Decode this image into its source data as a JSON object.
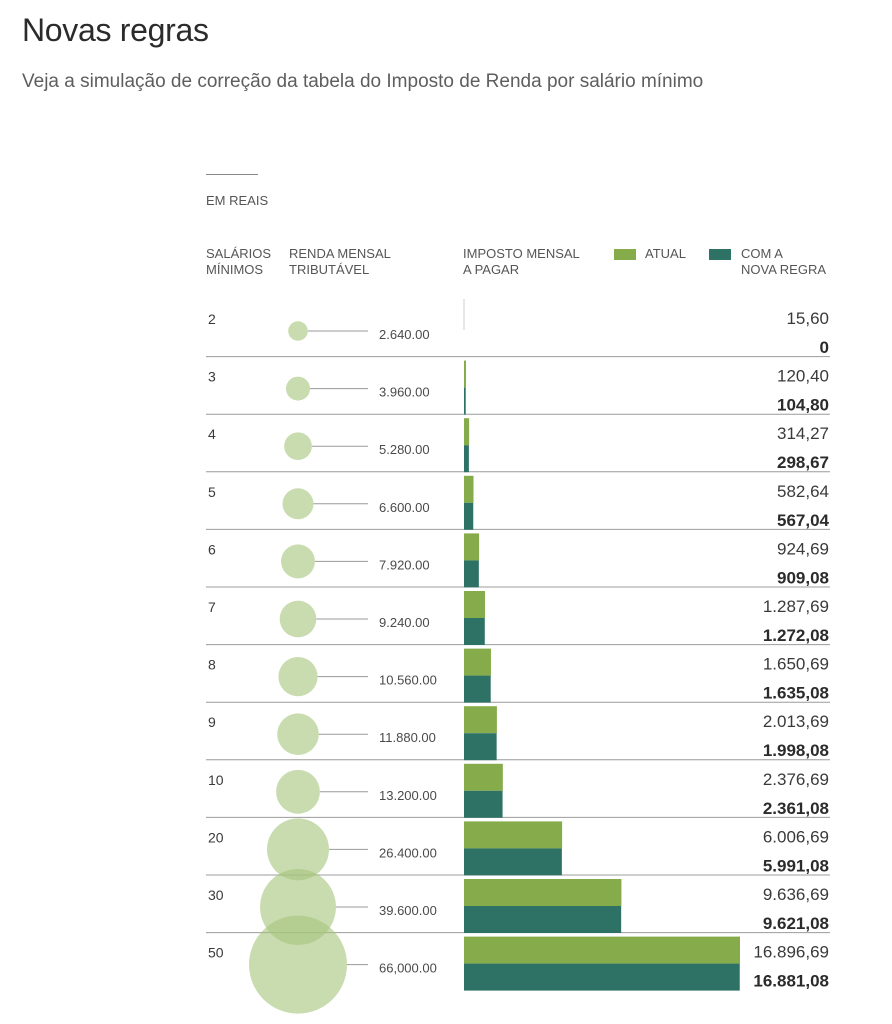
{
  "header": {
    "title": "Novas regras",
    "subtitle": "Veja a simulação de correção da tabela do Imposto de Renda por salário mínimo"
  },
  "labels": {
    "unit": "EM REAIS",
    "col_salarios": [
      "SALÁRIOS",
      "MÍNIMOS"
    ],
    "col_renda": [
      "RENDA MENSAL",
      "TRIBUTÁVEL"
    ],
    "col_imposto": [
      "IMPOSTO MENSAL",
      "A PAGAR"
    ],
    "legend_atual": "ATUAL",
    "legend_nova": [
      "COM A",
      "NOVA REGRA"
    ]
  },
  "colors": {
    "atual": "#85ab4a",
    "nova": "#2e7265",
    "bubble": "#a5c47c",
    "divider": "#9c9c9c"
  },
  "chart_data": {
    "type": "bar",
    "orientation": "horizontal",
    "categories": [
      "2",
      "3",
      "4",
      "5",
      "6",
      "7",
      "8",
      "9",
      "10",
      "20",
      "30",
      "50"
    ],
    "renda_mensal": [
      2640,
      3960,
      5280,
      6600,
      7920,
      9240,
      10560,
      11880,
      13200,
      26400,
      39600,
      66000
    ],
    "renda_labels": [
      "2.640.00",
      "3.960.00",
      "5.280.00",
      "6.600.00",
      "7.920.00",
      "9.240.00",
      "10.560.00",
      "11.880.00",
      "13.200.00",
      "26.400.00",
      "39.600.00",
      "66,000.00"
    ],
    "series": [
      {
        "name": "ATUAL",
        "values": [
          15.6,
          120.4,
          314.27,
          582.64,
          924.69,
          1287.69,
          1650.69,
          2013.69,
          2376.69,
          6006.69,
          9636.69,
          16896.69
        ],
        "labels": [
          "15,60",
          "120,40",
          "314,27",
          "582,64",
          "924,69",
          "1.287,69",
          "1.650,69",
          "2.013,69",
          "2.376,69",
          "6.006,69",
          "9.636,69",
          "16.896,69"
        ]
      },
      {
        "name": "COM A NOVA REGRA",
        "values": [
          0,
          104.8,
          298.67,
          567.04,
          909.08,
          1272.08,
          1635.08,
          1998.08,
          2361.08,
          5991.08,
          9621.08,
          16881.08
        ],
        "labels": [
          "0",
          "104,80",
          "298,67",
          "567,04",
          "909,08",
          "1.272,08",
          "1.635,08",
          "1.998,08",
          "2.361,08",
          "5.991,08",
          "9.621,08",
          "16.881,08"
        ]
      }
    ],
    "xlim": [
      0,
      16896.69
    ]
  }
}
